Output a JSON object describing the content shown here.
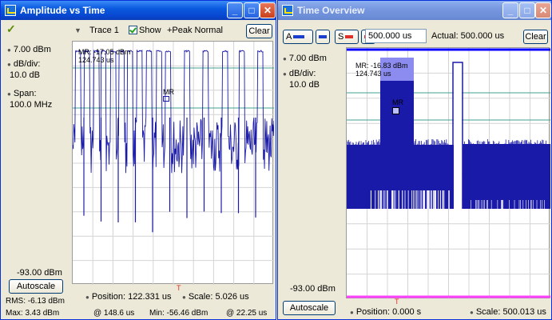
{
  "left_window": {
    "title": "Amplitude vs Time",
    "reference_level": "7.00 dBm",
    "db_div_label": "dB/div:",
    "db_div_value": "10.0 dB",
    "span_label": "Span:",
    "span_value": "100.0 MHz",
    "bottom_level": "-93.00 dBm",
    "autoscale_label": "Autoscale",
    "trace_label": "Trace 1",
    "show_label": "Show",
    "detection_label": "+Peak Normal",
    "clear_label": "Clear",
    "marker_readout_line1": "MR: -17.05 dBm",
    "marker_readout_line2": "124.743 us",
    "marker_label": "MR",
    "position_label": "Position: 122.331 us",
    "scale_label": "Scale: 5.026 us",
    "rms_label": "RMS: -6.13 dBm",
    "max_label": "Max: 3.43 dBm",
    "max_at": "@ 148.6 us",
    "min_label": "Min: -56.46 dBm",
    "min_at": "@ 22.25 us",
    "trace_color": "#1a1aa8"
  },
  "right_window": {
    "title": "Time Overview",
    "a_button_label": "A",
    "s_button_label": "S",
    "time_value": "500.000 us",
    "actual_label": "Actual: 500.000 us",
    "clear_label": "Clear",
    "reference_level": "7.00 dBm",
    "db_div_label": "dB/div:",
    "db_div_value": "10.0 dB",
    "bottom_level": "-93.00 dBm",
    "autoscale_label": "Autoscale",
    "marker_readout_line1": "MR: -16.83 dBm",
    "marker_readout_line2": "124.743 us",
    "marker_label": "MR",
    "position_label": "Position: 0.000 s",
    "scale_label": "Scale: 500.013 us",
    "trace_color": "#1a1aa8",
    "selection_color": "#0a00ff",
    "bottom_bar_color": "#ff40ff"
  },
  "window_buttons": {
    "minimize": "_",
    "maximize": "□",
    "close": "✕"
  }
}
